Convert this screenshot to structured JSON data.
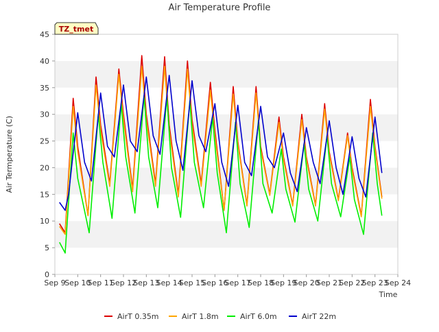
{
  "chart_data": {
    "type": "line",
    "title": "Air Temperature Profile",
    "xlabel": "Time",
    "ylabel": "Air Termperature (C)",
    "ylim": [
      0,
      45
    ],
    "yticks": [
      0,
      5,
      10,
      15,
      20,
      25,
      30,
      35,
      40,
      45
    ],
    "xlim": [
      9,
      24
    ],
    "xticks": [
      {
        "x": 9,
        "label": "Sep 9"
      },
      {
        "x": 10,
        "label": "Sep 10"
      },
      {
        "x": 11,
        "label": "Sep 11"
      },
      {
        "x": 12,
        "label": "Sep 12"
      },
      {
        "x": 13,
        "label": "Sep 13"
      },
      {
        "x": 14,
        "label": "Sep 14"
      },
      {
        "x": 15,
        "label": "Sep 15"
      },
      {
        "x": 16,
        "label": "Sep 16"
      },
      {
        "x": 17,
        "label": "Sep 17"
      },
      {
        "x": 18,
        "label": "Sep 18"
      },
      {
        "x": 19,
        "label": "Sep 19"
      },
      {
        "x": 20,
        "label": "Sep 20"
      },
      {
        "x": 21,
        "label": "Sep 21"
      },
      {
        "x": 22,
        "label": "Sep 22"
      },
      {
        "x": 23,
        "label": "Sep 23"
      },
      {
        "x": 24,
        "label": "Sep 24"
      }
    ],
    "grid": "horizontal bands",
    "annotation": "TZ_tmet",
    "legend_position": "bottom",
    "colors": {
      "AirT 0.35m": "#dd0000",
      "AirT 1.8m": "#ffa500",
      "AirT 6.0m": "#00ee00",
      "AirT 22m": "#0000cc"
    },
    "series": [
      {
        "name": "AirT 0.35m",
        "color": "#dd0000",
        "x": [
          9.2,
          9.45,
          9.8,
          10.0,
          10.45,
          10.8,
          11.0,
          11.4,
          11.8,
          12.0,
          12.4,
          12.8,
          13.0,
          13.4,
          13.8,
          14.0,
          14.4,
          14.8,
          15.0,
          15.4,
          15.8,
          16.0,
          16.4,
          16.8,
          17.0,
          17.4,
          17.8,
          18.0,
          18.4,
          18.8,
          19.0,
          19.4,
          19.8,
          20.0,
          20.4,
          20.8,
          21.0,
          21.4,
          21.8,
          22.0,
          22.4,
          22.8,
          23.0,
          23.3
        ],
        "y": [
          9.5,
          7.8,
          33.0,
          24.0,
          11.0,
          37.0,
          28.0,
          17.0,
          38.5,
          30.0,
          16.0,
          41.0,
          30.0,
          17.0,
          40.8,
          28.0,
          15.0,
          40.0,
          29.0,
          17.0,
          36.0,
          27.0,
          12.0,
          35.2,
          25.0,
          13.0,
          35.2,
          24.0,
          15.0,
          29.5,
          22.0,
          13.0,
          30.0,
          22.0,
          13.0,
          32.0,
          23.0,
          14.0,
          26.5,
          20.0,
          11.0,
          32.8,
          24.0,
          14.5
        ]
      },
      {
        "name": "AirT 1.8m",
        "color": "#ffa500",
        "x": [
          9.2,
          9.45,
          9.8,
          10.0,
          10.45,
          10.8,
          11.0,
          11.4,
          11.8,
          12.0,
          12.4,
          12.8,
          13.0,
          13.4,
          13.8,
          14.0,
          14.4,
          14.8,
          15.0,
          15.4,
          15.8,
          16.0,
          16.4,
          16.8,
          17.0,
          17.4,
          17.8,
          18.0,
          18.4,
          18.8,
          19.0,
          19.4,
          19.8,
          20.0,
          20.4,
          20.8,
          21.0,
          21.4,
          21.8,
          22.0,
          22.4,
          22.8,
          23.0,
          23.3
        ],
        "y": [
          9.0,
          7.5,
          31.5,
          23.0,
          11.0,
          35.5,
          27.0,
          16.5,
          37.5,
          29.0,
          15.5,
          39.0,
          29.0,
          16.5,
          39.0,
          27.0,
          14.5,
          38.5,
          28.0,
          16.5,
          34.5,
          26.0,
          12.0,
          33.8,
          24.5,
          12.8,
          34.0,
          23.5,
          14.8,
          28.5,
          21.5,
          12.8,
          29.0,
          21.5,
          12.8,
          31.0,
          22.5,
          13.8,
          26.0,
          19.5,
          10.8,
          31.5,
          23.5,
          14.2
        ]
      },
      {
        "name": "AirT 6.0m",
        "color": "#00ee00",
        "x": [
          9.2,
          9.45,
          9.8,
          10.0,
          10.5,
          10.9,
          11.1,
          11.5,
          11.9,
          12.1,
          12.5,
          12.9,
          13.1,
          13.5,
          13.9,
          14.1,
          14.5,
          14.9,
          15.1,
          15.5,
          15.9,
          16.1,
          16.5,
          16.9,
          17.1,
          17.5,
          17.9,
          18.1,
          18.5,
          18.9,
          19.1,
          19.5,
          19.9,
          20.1,
          20.5,
          20.9,
          21.1,
          21.5,
          21.9,
          22.1,
          22.5,
          22.9,
          23.1,
          23.3
        ],
        "y": [
          6.0,
          4.0,
          26.5,
          18.0,
          7.8,
          30.0,
          21.0,
          10.5,
          32.0,
          22.0,
          11.5,
          33.5,
          22.0,
          12.5,
          33.3,
          20.0,
          10.7,
          32.5,
          21.0,
          12.5,
          29.5,
          19.0,
          7.8,
          28.5,
          17.0,
          8.8,
          28.8,
          17.0,
          11.5,
          23.5,
          16.0,
          9.8,
          24.5,
          16.0,
          10.0,
          26.0,
          17.0,
          10.8,
          22.0,
          14.0,
          7.5,
          26.5,
          17.0,
          11.0
        ]
      },
      {
        "name": "AirT 22m",
        "color": "#0000cc",
        "x": [
          9.2,
          9.45,
          9.6,
          10.0,
          10.3,
          10.6,
          11.0,
          11.3,
          11.6,
          12.0,
          12.3,
          12.6,
          13.0,
          13.3,
          13.6,
          14.0,
          14.3,
          14.6,
          15.0,
          15.3,
          15.6,
          16.0,
          16.3,
          16.6,
          17.0,
          17.3,
          17.6,
          18.0,
          18.3,
          18.6,
          19.0,
          19.3,
          19.6,
          20.0,
          20.3,
          20.6,
          21.0,
          21.3,
          21.6,
          22.0,
          22.3,
          22.6,
          23.0,
          23.3
        ],
        "y": [
          13.5,
          12.0,
          15.0,
          30.3,
          21.0,
          17.5,
          34.0,
          24.0,
          22.0,
          35.5,
          25.0,
          23.0,
          37.0,
          26.0,
          22.5,
          37.3,
          25.0,
          19.5,
          36.3,
          26.0,
          23.0,
          32.0,
          21.0,
          16.5,
          31.7,
          21.0,
          18.5,
          31.5,
          22.0,
          20.0,
          26.5,
          19.0,
          15.5,
          27.5,
          21.0,
          17.0,
          28.8,
          20.0,
          15.0,
          25.8,
          18.0,
          14.5,
          29.5,
          19.0
        ]
      }
    ]
  }
}
